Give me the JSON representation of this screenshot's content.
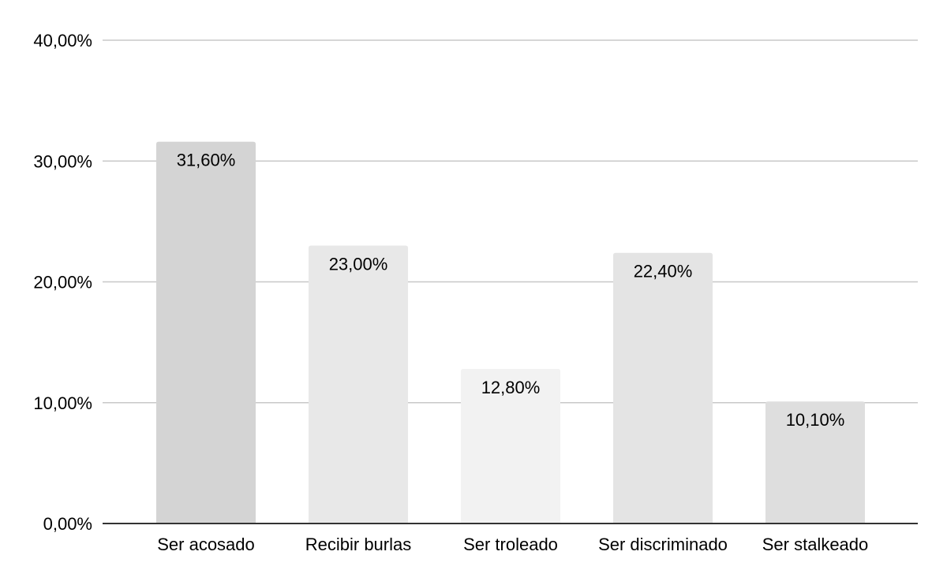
{
  "chart_data": {
    "type": "bar",
    "title": "",
    "xlabel": "",
    "ylabel": "",
    "categories": [
      "Ser acosado",
      "Recibir burlas",
      "Ser troleado",
      "Ser discriminado",
      "Ser stalkeado"
    ],
    "values": [
      31.6,
      23.0,
      12.8,
      22.4,
      10.1
    ],
    "value_labels": [
      "31,60%",
      "23,00%",
      "12,80%",
      "22,40%",
      "10,10%"
    ],
    "bar_colors": [
      "#d4d4d4",
      "#e8e8e8",
      "#f2f2f2",
      "#e4e4e4",
      "#dedede"
    ],
    "ylim": [
      0,
      40
    ],
    "yticks": [
      0,
      10,
      20,
      30,
      40
    ],
    "ytick_labels": [
      "0,00%",
      "10,00%",
      "20,00%",
      "30,00%",
      "40,00%"
    ],
    "grid": true,
    "gridline_color": "#c8c8c8",
    "axis_color": "#333333",
    "legend": "none"
  }
}
